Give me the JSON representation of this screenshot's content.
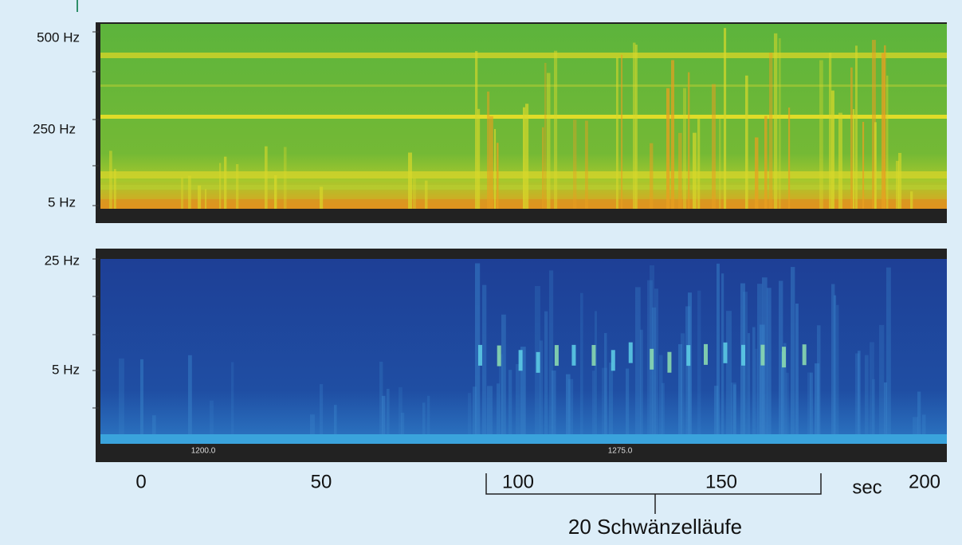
{
  "top_panel": {
    "y_labels": [
      "500 Hz",
      "250 Hz",
      "5 Hz"
    ]
  },
  "bottom_panel": {
    "y_labels": [
      "25 Hz",
      "5 Hz"
    ],
    "time_labels": [
      "1200.0",
      "1275.0"
    ]
  },
  "x_axis": {
    "ticks": [
      "0",
      "50",
      "100",
      "150",
      "200"
    ],
    "unit": "sec"
  },
  "annotation": "20 Schwänzelläufe"
}
